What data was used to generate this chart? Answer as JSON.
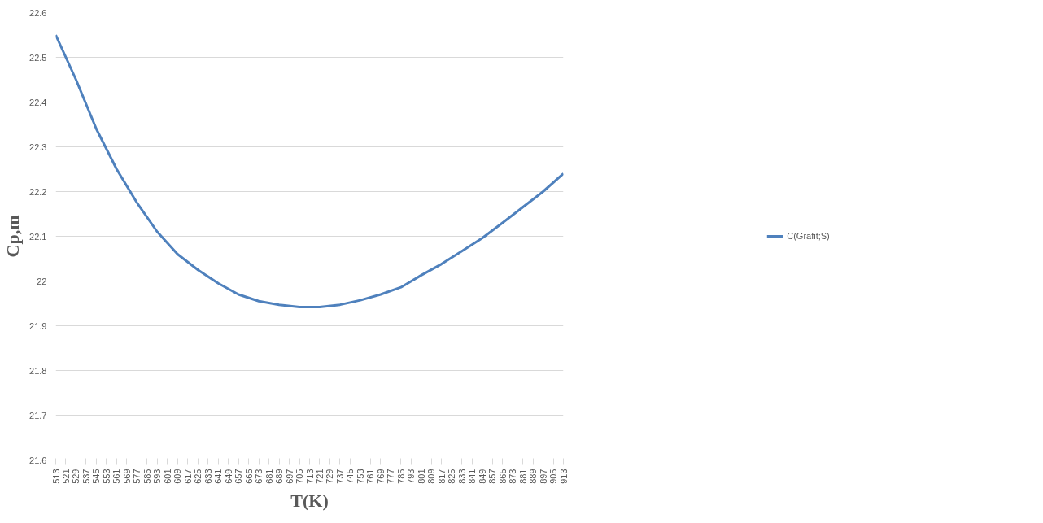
{
  "chart_data": {
    "type": "line",
    "xlabel": "T(K)",
    "ylabel": "Cp,m",
    "x": [
      513,
      529,
      545,
      561,
      577,
      593,
      609,
      625,
      641,
      657,
      673,
      689,
      705,
      721,
      737,
      753,
      769,
      785,
      801,
      817,
      833,
      849,
      865,
      881,
      897,
      913
    ],
    "series": [
      {
        "name": "C(Grafit;S)",
        "color": "#4f81bd",
        "values": [
          22.55,
          22.45,
          22.34,
          22.25,
          22.175,
          22.11,
          22.06,
          22.025,
          21.995,
          21.97,
          21.955,
          21.947,
          21.942,
          21.942,
          21.947,
          21.957,
          21.97,
          21.986,
          22.013,
          22.038,
          22.067,
          22.096,
          22.13,
          22.165,
          22.2,
          22.24
        ]
      }
    ],
    "xlim": [
      513,
      913
    ],
    "xticks": [
      513,
      521,
      529,
      537,
      545,
      553,
      561,
      569,
      577,
      585,
      593,
      601,
      609,
      617,
      625,
      633,
      641,
      649,
      657,
      665,
      673,
      681,
      689,
      697,
      705,
      713,
      721,
      729,
      737,
      745,
      753,
      761,
      769,
      777,
      785,
      793,
      801,
      809,
      817,
      825,
      833,
      841,
      849,
      857,
      865,
      873,
      881,
      889,
      897,
      905,
      913
    ],
    "ylim": [
      21.6,
      22.6
    ],
    "yticks": [
      21.6,
      21.7,
      21.8,
      21.9,
      22,
      22.1,
      22.2,
      22.3,
      22.4,
      22.5,
      22.6
    ],
    "grid": "y",
    "legend": "right",
    "marker": "none",
    "line_style": "solid"
  }
}
